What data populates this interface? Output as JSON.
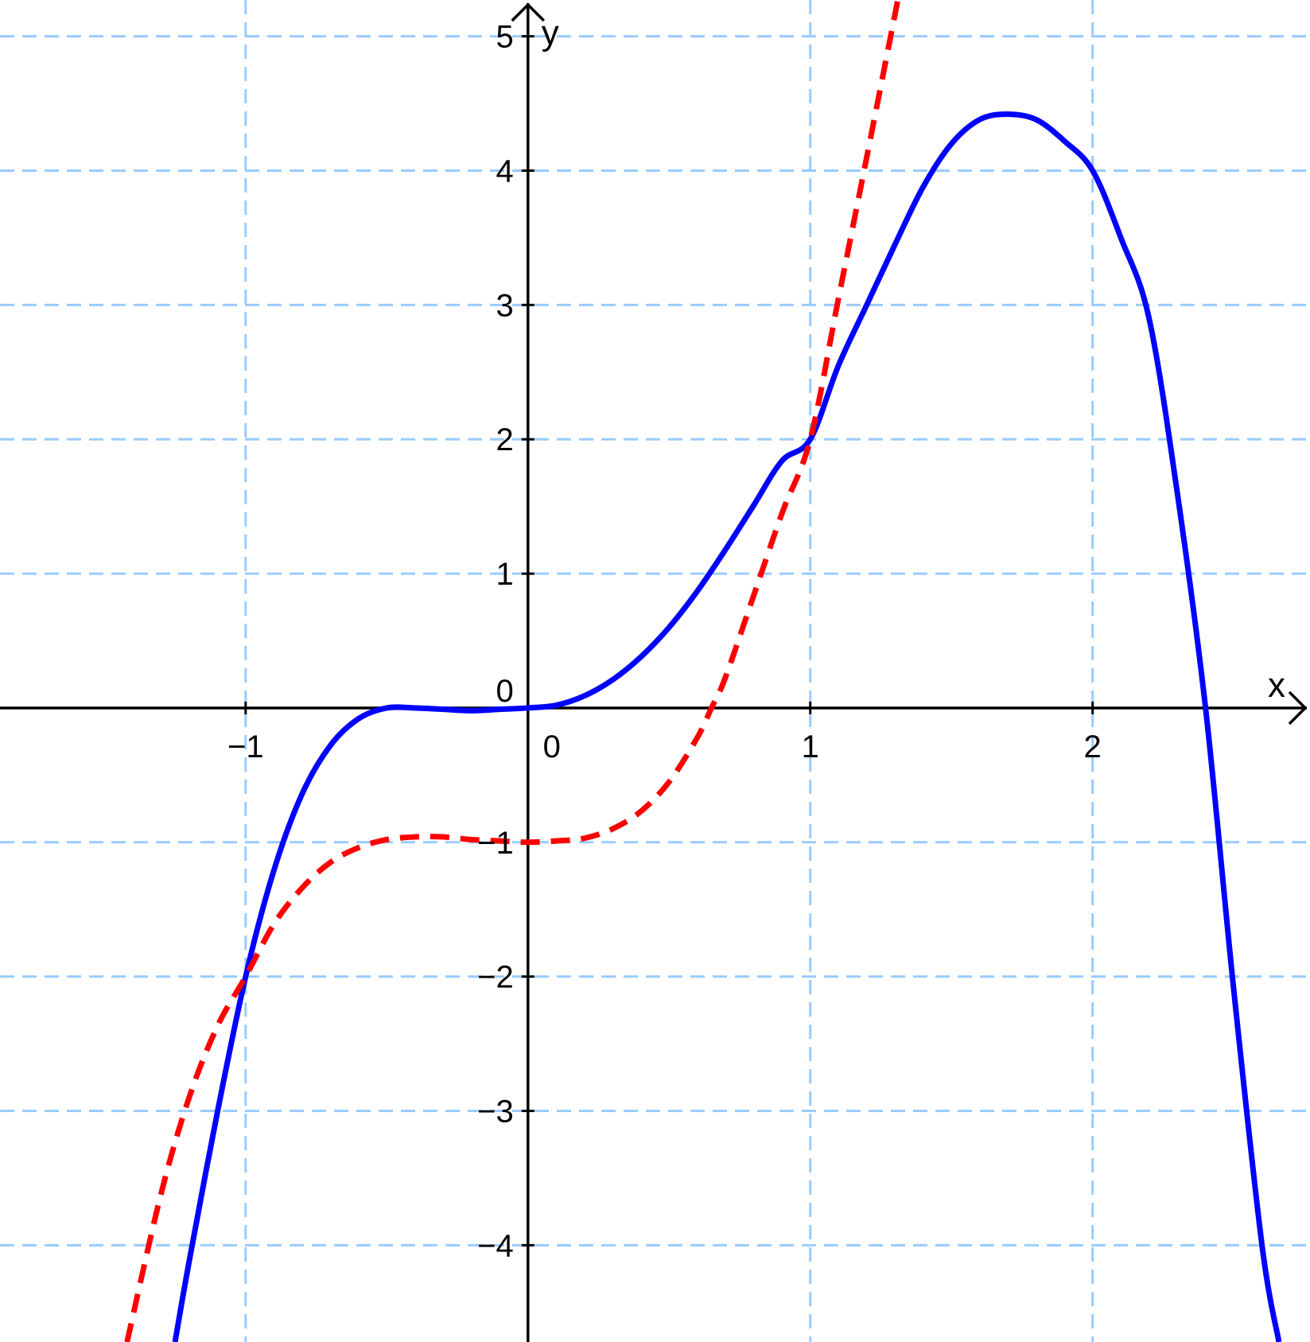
{
  "chart_data": {
    "type": "line",
    "xlabel": "x",
    "ylabel": "y",
    "xlim": [
      -1.87,
      2.77
    ],
    "ylim": [
      -4.72,
      5.27
    ],
    "grid": true,
    "x_ticks": [
      {
        "value": -1,
        "label": "−1"
      },
      {
        "value": 0,
        "label": "0"
      },
      {
        "value": 1,
        "label": "1"
      },
      {
        "value": 2,
        "label": "2"
      }
    ],
    "y_ticks": [
      {
        "value": -4,
        "label": "−4"
      },
      {
        "value": -3,
        "label": "−3"
      },
      {
        "value": -2,
        "label": "−2"
      },
      {
        "value": -1,
        "label": "−1"
      },
      {
        "value": 0,
        "label": "0"
      },
      {
        "value": 1,
        "label": "1"
      },
      {
        "value": 2,
        "label": "2"
      },
      {
        "value": 3,
        "label": "3"
      },
      {
        "value": 4,
        "label": "4"
      },
      {
        "value": 5,
        "label": "5"
      }
    ],
    "series": [
      {
        "style": "solid",
        "color": "#0000ff",
        "x": [
          -1.25,
          -1.2,
          -1.1,
          -1.0,
          -0.9,
          -0.8,
          -0.7,
          -0.6,
          -0.5,
          -0.4,
          -0.3,
          -0.2,
          -0.1,
          0.0,
          0.1,
          0.2,
          0.3,
          0.4,
          0.5,
          0.6,
          0.7,
          0.8,
          0.9,
          1.0,
          1.1,
          1.2,
          1.3,
          1.4,
          1.5,
          1.6,
          1.7,
          1.8,
          1.9,
          2.0,
          2.1,
          2.2,
          2.3,
          2.4,
          2.5,
          2.6,
          2.66
        ],
        "y": [
          -4.72,
          -4.12,
          -3.01,
          -2.0,
          -1.21,
          -0.64,
          -0.28,
          -0.08,
          0.0,
          0.0,
          -0.01,
          -0.02,
          -0.01,
          0.0,
          0.02,
          0.09,
          0.21,
          0.38,
          0.6,
          0.87,
          1.18,
          1.51,
          1.84,
          2.0,
          2.55,
          3.0,
          3.45,
          3.88,
          4.2,
          4.38,
          4.42,
          4.38,
          4.22,
          4.0,
          3.5,
          2.9,
          1.6,
          0.0,
          -2.1,
          -4.0,
          -4.72
        ]
      },
      {
        "style": "dashed",
        "color": "#ff0000",
        "x": [
          -1.42,
          -1.3,
          -1.2,
          -1.1,
          -1.0,
          -0.9,
          -0.8,
          -0.7,
          -0.6,
          -0.5,
          -0.4,
          -0.3,
          -0.2,
          -0.1,
          0.0,
          0.1,
          0.2,
          0.3,
          0.4,
          0.5,
          0.6,
          0.65,
          0.7,
          0.8,
          0.9,
          1.0,
          1.1,
          1.2,
          1.31
        ],
        "y": [
          -4.72,
          -3.62,
          -2.9,
          -2.37,
          -2.0,
          -1.61,
          -1.34,
          -1.15,
          -1.04,
          -0.98,
          -0.96,
          -0.96,
          -0.98,
          -0.99,
          -1.0,
          -0.99,
          -0.97,
          -0.9,
          -0.77,
          -0.55,
          -0.22,
          0.0,
          0.23,
          0.84,
          1.45,
          2.0,
          3.05,
          4.1,
          5.27
        ]
      }
    ]
  }
}
